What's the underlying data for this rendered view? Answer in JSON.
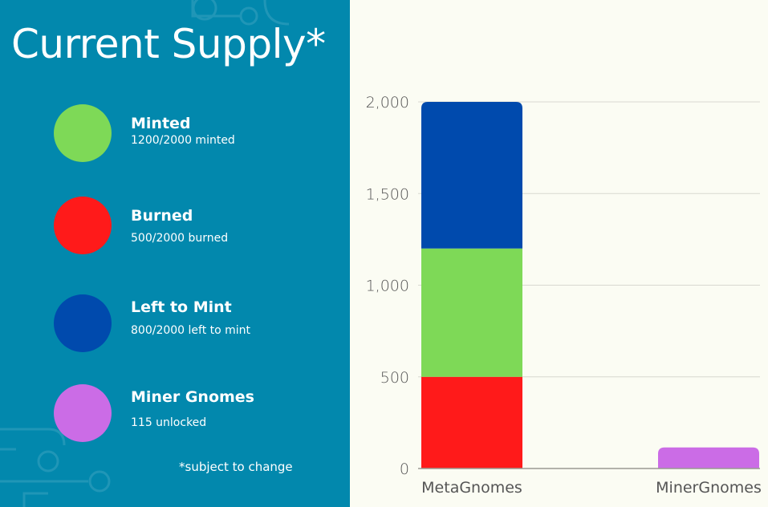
{
  "panel": {
    "title": "Current Supply*",
    "note": "*subject to change",
    "legend": [
      {
        "label": "Minted",
        "sub": "1200/2000 minted",
        "color": "#7ed957",
        "icon": "green-circle"
      },
      {
        "label": "Burned",
        "sub": "500/2000 burned",
        "color": "#ff1a1a",
        "icon": "red-circle"
      },
      {
        "label": "Left to Mint",
        "sub": "800/2000 left to mint",
        "color": "#004aad",
        "icon": "blue-circle"
      },
      {
        "label": "Miner Gnomes",
        "sub": "115 unlocked",
        "color": "#cb6ce6",
        "icon": "purple-circle"
      }
    ]
  },
  "chart_data": {
    "type": "bar",
    "stacked": true,
    "categories": [
      "MetaGnomes",
      "MinerGnomes"
    ],
    "series": [
      {
        "name": "Burned",
        "values": [
          500,
          0
        ],
        "color": "#ff1a1a"
      },
      {
        "name": "Minted",
        "values": [
          700,
          0
        ],
        "color": "#7ed957"
      },
      {
        "name": "Left to Mint",
        "values": [
          800,
          0
        ],
        "color": "#004aad"
      },
      {
        "name": "Miner Gnomes",
        "values": [
          0,
          115
        ],
        "color": "#cb6ce6"
      }
    ],
    "yticks": [
      "0",
      "500",
      "1,000",
      "1,500",
      "2,000"
    ],
    "ytick_values": [
      0,
      500,
      1000,
      1500,
      2000
    ],
    "ylim": [
      0,
      2000
    ],
    "grid": true,
    "title": "",
    "xlabel": "",
    "ylabel": ""
  }
}
